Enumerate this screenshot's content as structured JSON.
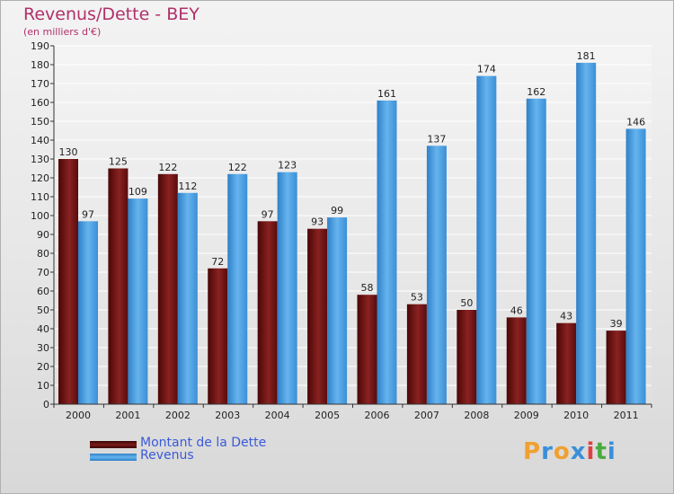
{
  "header": {
    "title": "Revenus/Dette - BEY",
    "subtitle": "(en milliers d'€)"
  },
  "chart_data": {
    "type": "bar",
    "categories": [
      "2000",
      "2001",
      "2002",
      "2003",
      "2004",
      "2005",
      "2006",
      "2007",
      "2008",
      "2009",
      "2010",
      "2011"
    ],
    "series": [
      {
        "name": "Montant de la Dette",
        "color": "#7a1a1a",
        "values": [
          130,
          125,
          122,
          72,
          97,
          93,
          58,
          53,
          50,
          46,
          43,
          39
        ]
      },
      {
        "name": "Revenus",
        "color": "#4fa3e3",
        "values": [
          97,
          109,
          112,
          122,
          123,
          99,
          161,
          137,
          174,
          162,
          181,
          146
        ]
      }
    ],
    "ylim": [
      0,
      190
    ],
    "yticks": [
      0,
      10,
      20,
      30,
      40,
      50,
      60,
      70,
      80,
      90,
      100,
      110,
      120,
      130,
      140,
      150,
      160,
      170,
      180,
      190
    ],
    "grid": true,
    "legend": "bottom-left"
  },
  "legend": {
    "items": [
      {
        "label": "Montant de la Dette",
        "color": "#5c0a0a"
      },
      {
        "label": "Revenus",
        "color": "#4fa3e3"
      }
    ]
  },
  "logo": {
    "letters": [
      "P",
      "r",
      "o",
      "x",
      "i",
      "t",
      "i"
    ],
    "colors": [
      "#f0a030",
      "#3a8fd8",
      "#f0a030",
      "#3a8fd8",
      "#e04040",
      "#4aaa40",
      "#3a8fd8"
    ]
  }
}
